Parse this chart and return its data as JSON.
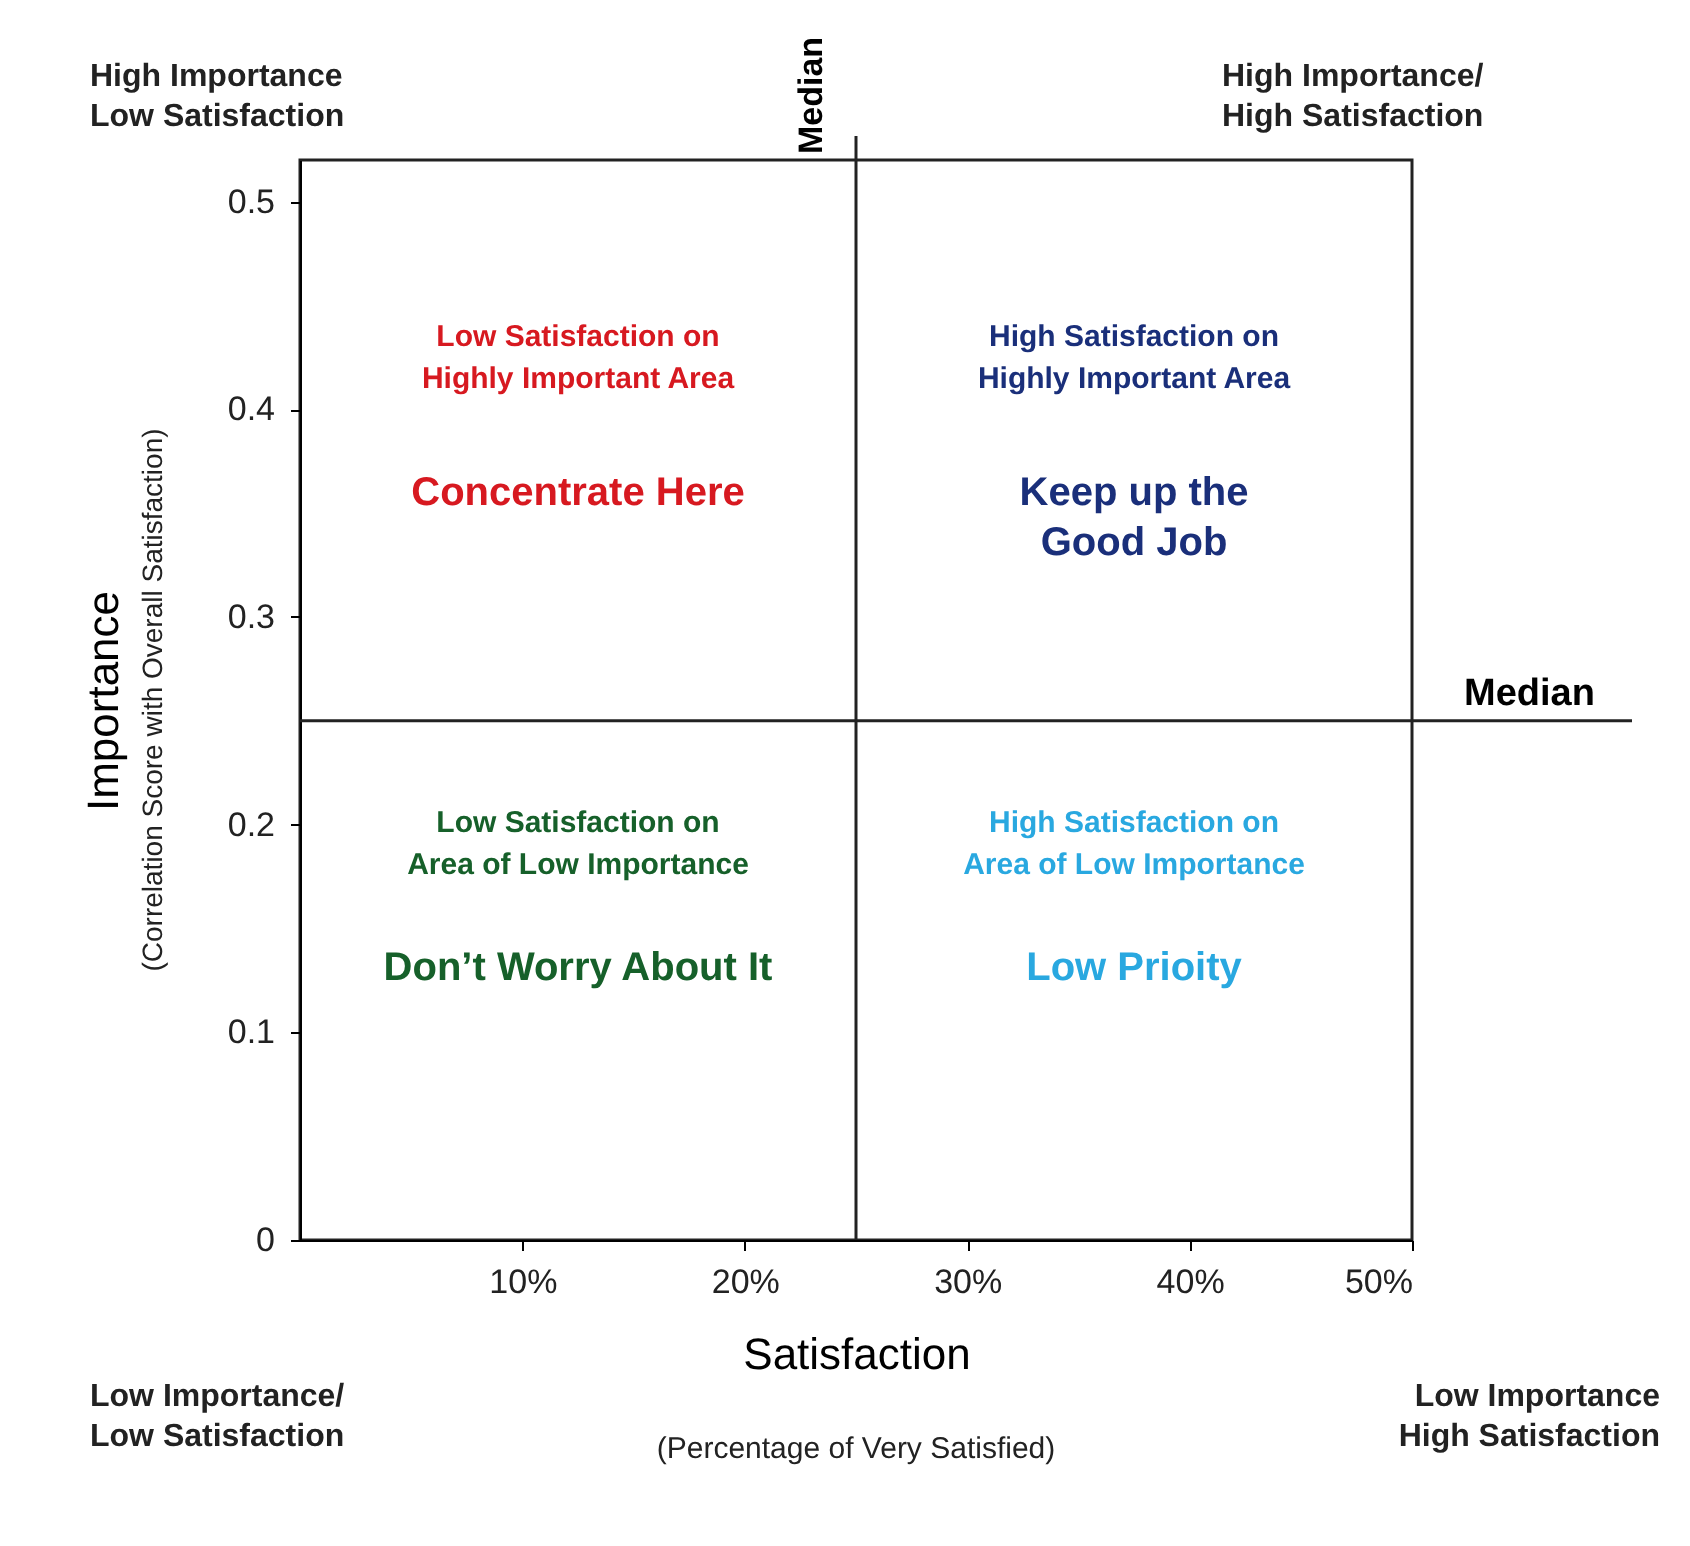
{
  "chart_data": {
    "type": "scatter",
    "xlabel": "Satisfaction",
    "ylabel": "Importance",
    "xlim": [
      0,
      50
    ],
    "ylim": [
      0,
      0.52
    ],
    "xticks": [
      {
        "value": 10,
        "label": "10%"
      },
      {
        "value": 20,
        "label": "20%"
      },
      {
        "value": 30,
        "label": "30%"
      },
      {
        "value": 40,
        "label": "40%"
      },
      {
        "value": 50,
        "label": "50%"
      }
    ],
    "yticks": [
      0,
      0.1,
      0.2,
      0.3,
      0.4,
      0.5
    ],
    "grid": false,
    "ref_lines": [
      {
        "axis": "x",
        "value": 25,
        "label": "Median"
      },
      {
        "axis": "y",
        "value": 0.25,
        "label": "Median"
      }
    ],
    "annotations": [
      "High Importance\nLow Satisfaction",
      "High Importance/\nHigh Satisfaction",
      "Low Importance/\nLow Satisfaction",
      "Low Importance\nHigh Satisfaction",
      "(Correlation Score with Overall Satisfaction)",
      "(Percentage of Very Satisfied)",
      "Low Satisfaction on\nHighly Important Area",
      "Concentrate Here",
      "High Satisfaction on\nHighly Important Area",
      "Keep up the\nGood Job",
      "Low Satisfaction on\nArea of Low Importance",
      "Don’t Worry About It",
      "High Satisfaction on\nArea of Low Importance",
      "Low Prioity"
    ]
  }
}
